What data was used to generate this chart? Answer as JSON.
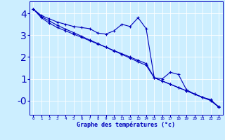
{
  "xlabel": "Graphe des températures (°c)",
  "background_color": "#cceeff",
  "line_color": "#0000bb",
  "grid_color": "#ffffff",
  "xlim": [
    -0.5,
    23.5
  ],
  "ylim": [
    -0.65,
    4.55
  ],
  "xticks": [
    0,
    1,
    2,
    3,
    4,
    5,
    6,
    7,
    8,
    9,
    10,
    11,
    12,
    13,
    14,
    15,
    16,
    17,
    18,
    19,
    20,
    21,
    22,
    23
  ],
  "yticks": [
    0,
    1,
    2,
    3,
    4
  ],
  "ytick_labels": [
    "-0",
    "1",
    "2",
    "3",
    "4"
  ],
  "hours": [
    0,
    1,
    2,
    3,
    4,
    5,
    6,
    7,
    8,
    9,
    10,
    11,
    12,
    13,
    14,
    15,
    16,
    17,
    18,
    19,
    20,
    21,
    22,
    23
  ],
  "line1": [
    4.2,
    3.9,
    3.75,
    3.6,
    3.5,
    3.4,
    3.35,
    3.3,
    3.1,
    3.05,
    3.2,
    3.5,
    3.4,
    3.8,
    3.3,
    1.05,
    1.0,
    1.3,
    1.2,
    0.5,
    0.3,
    0.15,
    0.05,
    -0.3
  ],
  "line2": [
    4.2,
    3.8,
    3.55,
    3.35,
    3.2,
    3.05,
    2.9,
    2.75,
    2.6,
    2.45,
    2.3,
    2.15,
    2.0,
    1.85,
    1.7,
    1.05,
    0.9,
    0.75,
    0.6,
    0.45,
    0.3,
    0.15,
    0.0,
    -0.3
  ],
  "line3": [
    4.2,
    3.85,
    3.65,
    3.45,
    3.28,
    3.12,
    2.95,
    2.78,
    2.62,
    2.45,
    2.28,
    2.12,
    1.95,
    1.78,
    1.62,
    1.05,
    0.9,
    0.75,
    0.6,
    0.45,
    0.3,
    0.15,
    0.02,
    -0.28
  ]
}
